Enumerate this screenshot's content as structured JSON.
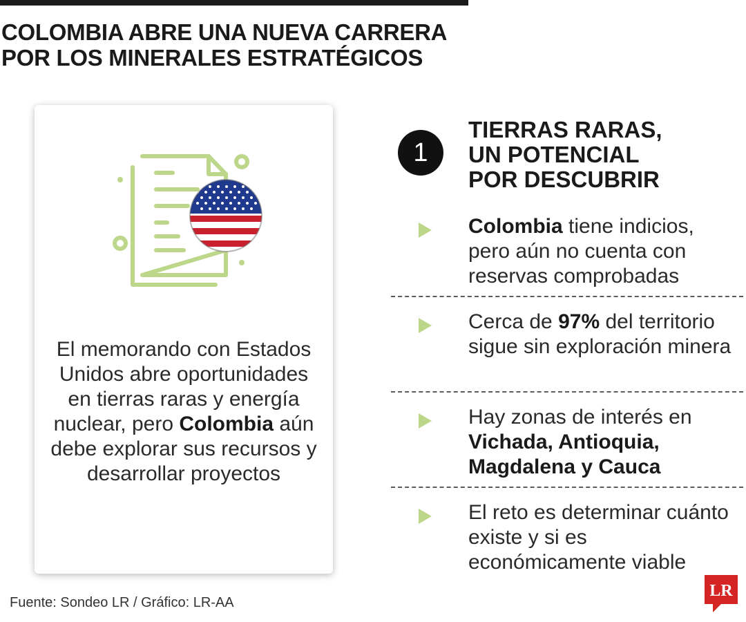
{
  "header": {
    "title_line1": "COLOMBIA ABRE UNA NUEVA CARRERA",
    "title_line2": "POR LOS MINERALES ESTRATÉGICOS"
  },
  "card": {
    "icon": "document-with-us-flag-icon",
    "text_part1": "El memorando con Estados Unidos abre oportunidades en tierras raras y energía nuclear, pero ",
    "text_bold": "Colombia",
    "text_part2": " aún debe explorar sus recursos y desarrollar proyectos"
  },
  "section": {
    "number": "1",
    "title_line1": "TIERRAS RARAS,",
    "title_line2": "UN POTENCIAL",
    "title_line3": "POR DESCUBRIR"
  },
  "points": [
    {
      "bold_lead": "Colombia",
      "text": " tiene indicios, pero aún no cuenta con reservas comprobadas"
    },
    {
      "pre": "Cerca de ",
      "bold": "97%",
      "post": " del territorio sigue sin exploración minera"
    },
    {
      "text": "Hay zonas de interés en ",
      "bold_tail": "Vichada, Antioquia, Magdalena y Cauca"
    },
    {
      "text": "El reto es determinar cuánto existe y si es económicamente viable"
    }
  ],
  "footer": {
    "source": "Fuente: Sondeo LR / Gráfico: LR-AA",
    "logo_text": "LR"
  },
  "colors": {
    "accent_green": "#bcd68a",
    "logo_red": "#d42424",
    "text_dark": "#1a1a1a"
  }
}
